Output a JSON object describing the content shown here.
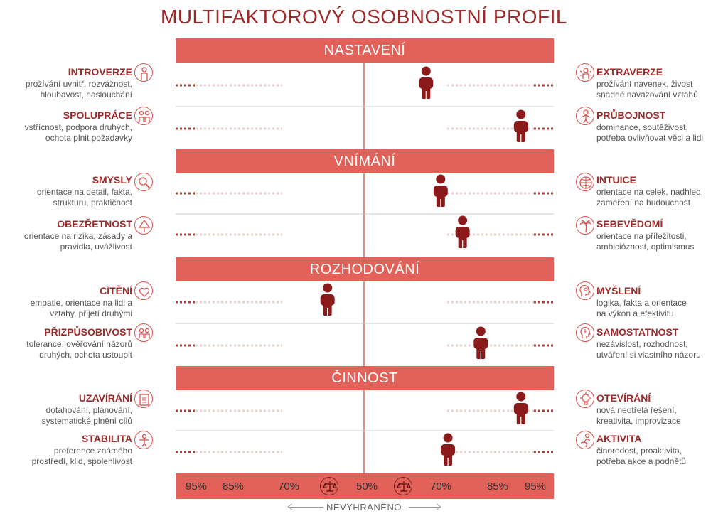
{
  "title": "MULTIFAKTOROVÝ OSOBNOSTNÍ PROFIL",
  "sections": [
    {
      "label": "NASTAVENÍ"
    },
    {
      "label": "VNÍMÁNÍ"
    },
    {
      "label": "ROZHODOVÁNÍ"
    },
    {
      "label": "ČINNOST"
    }
  ],
  "rows": [
    {
      "left_title": "INTROVERZE",
      "left_desc": [
        "prožívání uvnitř, rozvážnost,",
        "hloubavost, naslouchání"
      ],
      "left_icon": "person-inward-icon",
      "right_title": "EXTRAVERZE",
      "right_desc": [
        "prožívání navenek, živost",
        "snadné navazování vztahů"
      ],
      "right_icon": "person-outward-icon"
    },
    {
      "left_title": "SPOLUPRÁCE",
      "left_desc": [
        "vstřícnost, podpora druhých,",
        "ochota plnit požadavky"
      ],
      "left_icon": "two-people-icon",
      "right_title": "PRŮBOJNOST",
      "right_desc": [
        "dominance, soutěživost,",
        "potřeba ovlivňovat věci a lidi"
      ],
      "right_icon": "strong-person-icon"
    },
    {
      "left_title": "SMYSLY",
      "left_desc": [
        "orientace na detail, fakta,",
        "strukturu, praktičnost"
      ],
      "left_icon": "magnifier-icon",
      "right_title": "INTUICE",
      "right_desc": [
        "orientace na celek, nadhled,",
        "zaměření na budoucnost"
      ],
      "right_icon": "globe-icon"
    },
    {
      "left_title": "OBEZŘETNOST",
      "left_desc": [
        "orientace na rizika, zásady a",
        "pravidla, uvážlivost"
      ],
      "left_icon": "warning-sign-icon",
      "right_title": "SEBEVĚDOMÍ",
      "right_desc": [
        "orientace na příležitosti,",
        "ambicióznost, optimismus"
      ],
      "right_icon": "palm-island-icon"
    },
    {
      "left_title": "CÍTĚNÍ",
      "left_desc": [
        "empatie, orientace na lidi a",
        "vztahy, přijetí druhými"
      ],
      "left_icon": "heart-icon",
      "right_title": "MYŠLENÍ",
      "right_desc": [
        "logika, fakta a orientace",
        "na výkon a efektivitu"
      ],
      "right_icon": "brain-head-icon"
    },
    {
      "left_title": "PŘIZPŮSOBIVOST",
      "left_desc": [
        "tolerance, ověřování názorů",
        "druhých, ochota ustoupit"
      ],
      "left_icon": "adapting-people-icon",
      "right_title": "SAMOSTATNOST",
      "right_desc": [
        "nezávislost, rozhodnost,",
        "utváření si vlastního názoru"
      ],
      "right_icon": "independent-head-icon"
    },
    {
      "left_title": "UZAVÍRÁNÍ",
      "left_desc": [
        "dotahování, plánování,",
        "systematické plnění cílů"
      ],
      "left_icon": "checklist-icon",
      "right_title": "OTEVÍRÁNÍ",
      "right_desc": [
        "nová neotřelá řešení,",
        "kreativita, improvizace"
      ],
      "right_icon": "lightbulb-icon"
    },
    {
      "left_title": "STABILITA",
      "left_desc": [
        "preference známého",
        "prostředí, klid, spolehlivost"
      ],
      "left_icon": "balanced-person-icon",
      "right_title": "AKTIVITA",
      "right_desc": [
        "činorodost, proaktivita,",
        "potřeba akce a podnětů"
      ],
      "right_icon": "running-person-icon"
    }
  ],
  "scale": {
    "ticks": [
      {
        "label": "95%",
        "side": "left",
        "value": 95
      },
      {
        "label": "85%",
        "side": "left",
        "value": 85
      },
      {
        "label": "70%",
        "side": "left",
        "value": 70
      },
      {
        "label": "50%",
        "side": "center",
        "value": 50
      },
      {
        "label": "70%",
        "side": "right",
        "value": 70
      },
      {
        "label": "85%",
        "side": "right",
        "value": 85
      },
      {
        "label": "95%",
        "side": "right",
        "value": 95
      }
    ],
    "center_label": "NEVYHRANĚNO",
    "balance_icon": "scales-icon"
  },
  "chart_data": {
    "type": "scatter",
    "title": "MULTIFAKTOROVÝ OSOBNOSTNÍ PROFIL",
    "x_axis": "bipolar percentile scale, 50% center, up to 95% toward each pole",
    "points": [
      {
        "row": "INTROVERZE – EXTRAVERZE",
        "side": "right",
        "percent": 67
      },
      {
        "row": "SPOLUPRÁCE – PRŮBOJNOST",
        "side": "right",
        "percent": 93
      },
      {
        "row": "SMYSLY – INTUICE",
        "side": "right",
        "percent": 71
      },
      {
        "row": "OBEZŘETNOST – SEBEVĚDOMÍ",
        "side": "right",
        "percent": 77
      },
      {
        "row": "CÍTĚNÍ – MYŠLENÍ",
        "side": "left",
        "percent": 60
      },
      {
        "row": "PŘIZPŮSOBIVOST – SAMOSTATNOST",
        "side": "right",
        "percent": 82
      },
      {
        "row": "UZAVÍRÁNÍ – OTEVÍRÁNÍ",
        "side": "right",
        "percent": 93
      },
      {
        "row": "STABILITA – AKTIVITA",
        "side": "right",
        "percent": 73
      }
    ],
    "colors": {
      "band": "#e2625a",
      "marker": "#8b1a1a",
      "title": "#9e2a2a",
      "dots": "#c0392b"
    }
  }
}
